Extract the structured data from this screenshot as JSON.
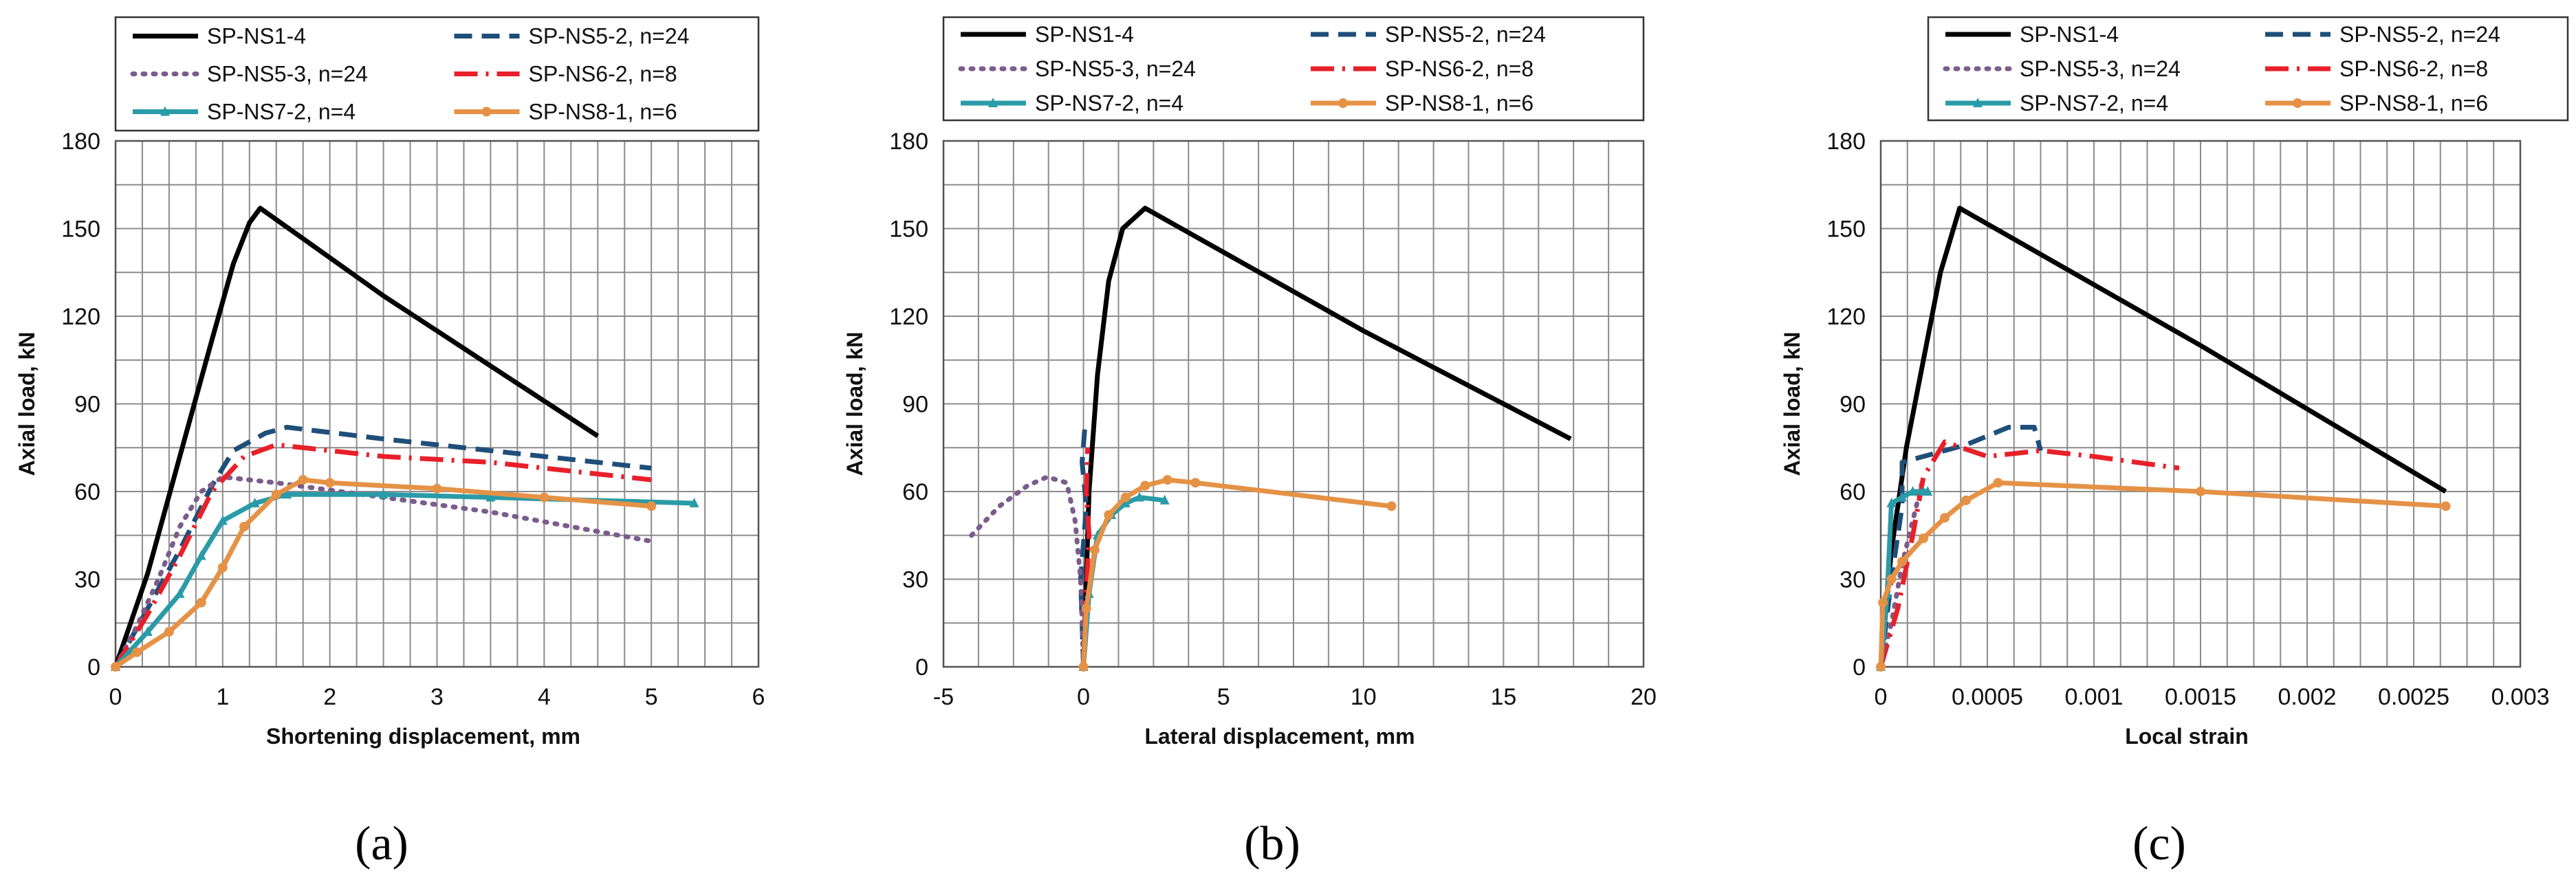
{
  "colors": {
    "SP-NS1-4": "#000000",
    "SP-NS5-2": "#1F4E79",
    "SP-NS5-3": "#7B5C8C",
    "SP-NS6-2": "#E8202A",
    "SP-NS7-2": "#2A9BA8",
    "SP-NS8-1": "#E59247",
    "grid": "#8c8c8c"
  },
  "legend": [
    {
      "id": "SP-NS1-4",
      "label": "SP-NS1-4",
      "style": "solid",
      "marker": "none"
    },
    {
      "id": "SP-NS5-2",
      "label": "SP-NS5-2, n=24",
      "style": "dashed",
      "marker": "none"
    },
    {
      "id": "SP-NS5-3",
      "label": "SP-NS5-3, n=24",
      "style": "dotted",
      "marker": "none"
    },
    {
      "id": "SP-NS6-2",
      "label": "SP-NS6-2, n=8",
      "style": "dashdot",
      "marker": "none"
    },
    {
      "id": "SP-NS7-2",
      "label": "SP-NS7-2, n=4",
      "style": "solid",
      "marker": "triangle"
    },
    {
      "id": "SP-NS8-1",
      "label": "SP-NS8-1, n=6",
      "style": "solid",
      "marker": "circle"
    }
  ],
  "chart_data": [
    {
      "type": "line",
      "panel_label": "(a)",
      "xlabel": "Shortening displacement, mm",
      "ylabel": "Axial load, kN",
      "xlim": [
        0,
        6
      ],
      "ylim": [
        0,
        180
      ],
      "x_ticks": [
        "0",
        "1",
        "2",
        "3",
        "4",
        "5",
        "6"
      ],
      "y_ticks": [
        "0",
        "30",
        "60",
        "90",
        "120",
        "150",
        "180"
      ],
      "x_minor": 0.25,
      "y_minor": 15,
      "series": [
        {
          "id": "SP-NS1-4",
          "x": [
            0,
            0.3,
            0.6,
            0.9,
            1.1,
            1.25,
            1.35,
            2.5,
            3.5,
            4.5
          ],
          "y": [
            0,
            32,
            72,
            112,
            138,
            152,
            157,
            127,
            103,
            79
          ]
        },
        {
          "id": "SP-NS5-2",
          "x": [
            0,
            0.3,
            0.6,
            0.9,
            1.1,
            1.4,
            1.6,
            2.5,
            3.5,
            5.0
          ],
          "y": [
            0,
            20,
            40,
            62,
            74,
            80,
            82,
            78,
            74,
            68
          ]
        },
        {
          "id": "SP-NS5-3",
          "x": [
            0,
            0.2,
            0.4,
            0.6,
            0.8,
            1.0,
            1.5,
            2.5,
            3.5,
            5.0
          ],
          "y": [
            0,
            14,
            30,
            48,
            60,
            65,
            63,
            58,
            53,
            43
          ]
        },
        {
          "id": "SP-NS6-2",
          "x": [
            0,
            0.3,
            0.6,
            0.9,
            1.2,
            1.5,
            2.5,
            3.5,
            5.0
          ],
          "y": [
            0,
            18,
            38,
            60,
            72,
            76,
            72,
            70,
            64
          ]
        },
        {
          "id": "SP-NS7-2",
          "x": [
            0,
            0.3,
            0.6,
            0.8,
            1.0,
            1.3,
            1.6,
            2.5,
            3.5,
            5.4
          ],
          "y": [
            0,
            12,
            25,
            38,
            50,
            56,
            59,
            59,
            58,
            56
          ]
        },
        {
          "id": "SP-NS8-1",
          "x": [
            0,
            0.2,
            0.5,
            0.8,
            1.0,
            1.2,
            1.5,
            1.75,
            2.0,
            3.0,
            4.0,
            5.0
          ],
          "y": [
            0,
            5,
            12,
            22,
            34,
            48,
            59,
            64,
            63,
            61,
            58,
            55
          ]
        }
      ]
    },
    {
      "type": "line",
      "panel_label": "(b)",
      "xlabel": "Lateral displacement, mm",
      "ylabel": "Axial load, kN",
      "xlim": [
        -5,
        20
      ],
      "ylim": [
        0,
        180
      ],
      "x_ticks": [
        "-5",
        "0",
        "5",
        "10",
        "15",
        "20"
      ],
      "y_ticks": [
        "0",
        "30",
        "60",
        "90",
        "120",
        "150",
        "180"
      ],
      "x_minor": 1.25,
      "y_minor": 15,
      "series": [
        {
          "id": "SP-NS1-4",
          "x": [
            0,
            0.2,
            0.5,
            0.9,
            1.4,
            2.2,
            10,
            17.4
          ],
          "y": [
            0,
            60,
            100,
            132,
            150,
            157,
            115,
            78
          ]
        },
        {
          "id": "SP-NS5-2",
          "x": [
            0,
            -0.1,
            0.1,
            -0.05,
            0.05
          ],
          "y": [
            0,
            30,
            55,
            70,
            82
          ]
        },
        {
          "id": "SP-NS5-3",
          "x": [
            -4,
            -3,
            -2,
            -1.3,
            -0.6,
            -0.3,
            -0.1,
            0
          ],
          "y": [
            45,
            55,
            62,
            65,
            63,
            50,
            30,
            0
          ]
        },
        {
          "id": "SP-NS6-2",
          "x": [
            0,
            0.1,
            0.2,
            0.1,
            0.15
          ],
          "y": [
            0,
            25,
            45,
            60,
            75
          ]
        },
        {
          "id": "SP-NS7-2",
          "x": [
            0,
            0.2,
            0.5,
            1.0,
            1.5,
            2.0,
            2.9
          ],
          "y": [
            0,
            25,
            45,
            52,
            56,
            58,
            57
          ]
        },
        {
          "id": "SP-NS8-1",
          "x": [
            0,
            0.1,
            0.4,
            0.9,
            1.5,
            2.2,
            3.0,
            4.0,
            11.0
          ],
          "y": [
            0,
            20,
            40,
            52,
            58,
            62,
            64,
            63,
            55
          ]
        }
      ]
    },
    {
      "type": "line",
      "panel_label": "(c)",
      "xlabel": "Local strain",
      "ylabel": "Axial load, kN",
      "xlim": [
        0,
        0.003
      ],
      "ylim": [
        0,
        180
      ],
      "x_ticks": [
        "0",
        "0.0005",
        "0.001",
        "0.0015",
        "0.002",
        "0.0025",
        "0.003"
      ],
      "y_ticks": [
        "0",
        "30",
        "60",
        "90",
        "120",
        "150",
        "180"
      ],
      "x_minor": 0.000125,
      "y_minor": 15,
      "series": [
        {
          "id": "SP-NS1-4",
          "x": [
            0,
            5e-05,
            0.00012,
            0.0002,
            0.00028,
            0.00037,
            0.0015,
            0.00265
          ],
          "y": [
            0,
            40,
            75,
            105,
            135,
            157,
            110,
            60
          ]
        },
        {
          "id": "SP-NS5-2",
          "x": [
            0,
            5e-05,
            0.0001,
            0.0001,
            0.0002,
            0.0004,
            0.0006,
            0.00072,
            0.00075
          ],
          "y": [
            0,
            30,
            55,
            70,
            72,
            76,
            82,
            82,
            74
          ]
        },
        {
          "id": "SP-NS5-3",
          "x": [
            0,
            5e-05,
            0.0001,
            0.00015,
            0.0002
          ],
          "y": [
            0,
            15,
            35,
            50,
            65
          ]
        },
        {
          "id": "SP-NS6-2",
          "x": [
            0,
            8e-05,
            0.00015,
            0.0002,
            0.0003,
            0.0005,
            0.00075,
            0.001,
            0.0014
          ],
          "y": [
            0,
            20,
            45,
            65,
            77,
            72,
            74,
            72,
            68
          ]
        },
        {
          "id": "SP-NS7-2",
          "x": [
            0,
            3e-05,
            5e-05,
            0.0001,
            0.00015,
            0.0002,
            0.00022
          ],
          "y": [
            0,
            25,
            56,
            58,
            60,
            60,
            60
          ]
        },
        {
          "id": "SP-NS8-1",
          "x": [
            0,
            1e-05,
            5e-05,
            0.0001,
            0.0002,
            0.0003,
            0.0004,
            0.00055,
            0.0015,
            0.00265
          ],
          "y": [
            0,
            22,
            30,
            36,
            44,
            51,
            57,
            63,
            60,
            55
          ]
        }
      ]
    }
  ]
}
